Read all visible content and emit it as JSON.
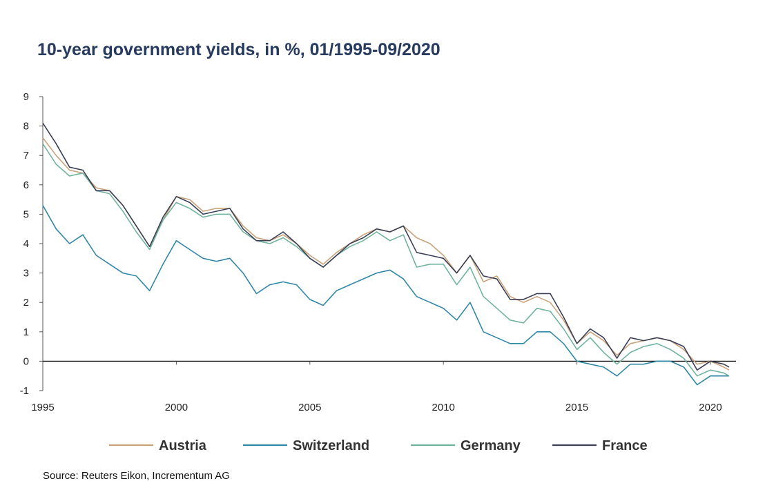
{
  "title": "10-year government yields, in %, 01/1995-09/2020",
  "source": "Source: Reuters Eikon, Incrementum AG",
  "chart_data": {
    "type": "line",
    "title": "10-year government yields, in %, 01/1995-09/2020",
    "xlabel": "",
    "ylabel": "",
    "xlim": [
      1995,
      2020.75
    ],
    "ylim": [
      -1,
      9
    ],
    "x_ticks": [
      "1995",
      "2000",
      "2005",
      "2010",
      "2015",
      "2020"
    ],
    "y_ticks": [
      "-1",
      "0",
      "1",
      "2",
      "3",
      "4",
      "5",
      "6",
      "7",
      "8",
      "9"
    ],
    "grid": false,
    "legend_position": "bottom",
    "x": [
      1995,
      1995.5,
      1996,
      1996.5,
      1997,
      1997.5,
      1998,
      1998.5,
      1999,
      1999.5,
      2000,
      2000.5,
      2001,
      2001.5,
      2002,
      2002.5,
      2003,
      2003.5,
      2004,
      2004.5,
      2005,
      2005.5,
      2006,
      2006.5,
      2007,
      2007.5,
      2008,
      2008.5,
      2009,
      2009.5,
      2010,
      2010.5,
      2011,
      2011.5,
      2012,
      2012.5,
      2013,
      2013.5,
      2014,
      2014.5,
      2015,
      2015.5,
      2016,
      2016.5,
      2017,
      2017.5,
      2018,
      2018.5,
      2019,
      2019.5,
      2020,
      2020.5,
      2020.7
    ],
    "series": [
      {
        "name": "Austria",
        "color": "#c9a27a",
        "values": [
          7.6,
          7.0,
          6.5,
          6.4,
          5.9,
          5.8,
          5.3,
          4.6,
          3.9,
          4.8,
          5.6,
          5.5,
          5.1,
          5.2,
          5.2,
          4.6,
          4.2,
          4.1,
          4.3,
          4.0,
          3.6,
          3.3,
          3.7,
          4.0,
          4.3,
          4.5,
          4.4,
          4.6,
          4.2,
          4.0,
          3.6,
          3.0,
          3.6,
          2.7,
          2.9,
          2.2,
          2.0,
          2.2,
          2.0,
          1.4,
          0.6,
          1.0,
          0.7,
          0.2,
          0.6,
          0.7,
          0.8,
          0.7,
          0.4,
          -0.1,
          0.0,
          -0.2,
          -0.3
        ]
      },
      {
        "name": "Switzerland",
        "color": "#2e86a8",
        "values": [
          5.3,
          4.5,
          4.0,
          4.3,
          3.6,
          3.3,
          3.0,
          2.9,
          2.4,
          3.3,
          4.1,
          3.8,
          3.5,
          3.4,
          3.5,
          3.0,
          2.3,
          2.6,
          2.7,
          2.6,
          2.1,
          1.9,
          2.4,
          2.6,
          2.8,
          3.0,
          3.1,
          2.8,
          2.2,
          2.0,
          1.8,
          1.4,
          2.0,
          1.0,
          0.8,
          0.6,
          0.6,
          1.0,
          1.0,
          0.6,
          0.0,
          -0.1,
          -0.2,
          -0.5,
          -0.1,
          -0.1,
          0.0,
          0.0,
          -0.2,
          -0.8,
          -0.5,
          -0.5,
          -0.5
        ]
      },
      {
        "name": "Germany",
        "color": "#6fb39e",
        "values": [
          7.4,
          6.7,
          6.3,
          6.4,
          5.8,
          5.7,
          5.1,
          4.4,
          3.8,
          4.8,
          5.4,
          5.2,
          4.9,
          5.0,
          5.0,
          4.4,
          4.1,
          4.0,
          4.2,
          3.9,
          3.5,
          3.2,
          3.6,
          3.9,
          4.1,
          4.4,
          4.1,
          4.3,
          3.2,
          3.3,
          3.3,
          2.6,
          3.2,
          2.2,
          1.8,
          1.4,
          1.3,
          1.8,
          1.7,
          1.1,
          0.4,
          0.8,
          0.3,
          -0.1,
          0.3,
          0.5,
          0.6,
          0.4,
          0.1,
          -0.5,
          -0.3,
          -0.4,
          -0.5
        ]
      },
      {
        "name": "France",
        "color": "#3b3f55",
        "values": [
          8.1,
          7.4,
          6.6,
          6.5,
          5.8,
          5.8,
          5.3,
          4.6,
          3.9,
          4.9,
          5.6,
          5.4,
          5.0,
          5.1,
          5.2,
          4.5,
          4.1,
          4.1,
          4.4,
          4.0,
          3.5,
          3.2,
          3.6,
          4.0,
          4.2,
          4.5,
          4.4,
          4.6,
          3.7,
          3.6,
          3.5,
          3.0,
          3.6,
          2.9,
          2.8,
          2.1,
          2.1,
          2.3,
          2.3,
          1.5,
          0.6,
          1.1,
          0.8,
          0.1,
          0.8,
          0.7,
          0.8,
          0.7,
          0.5,
          -0.3,
          0.0,
          -0.1,
          -0.2
        ]
      }
    ]
  }
}
